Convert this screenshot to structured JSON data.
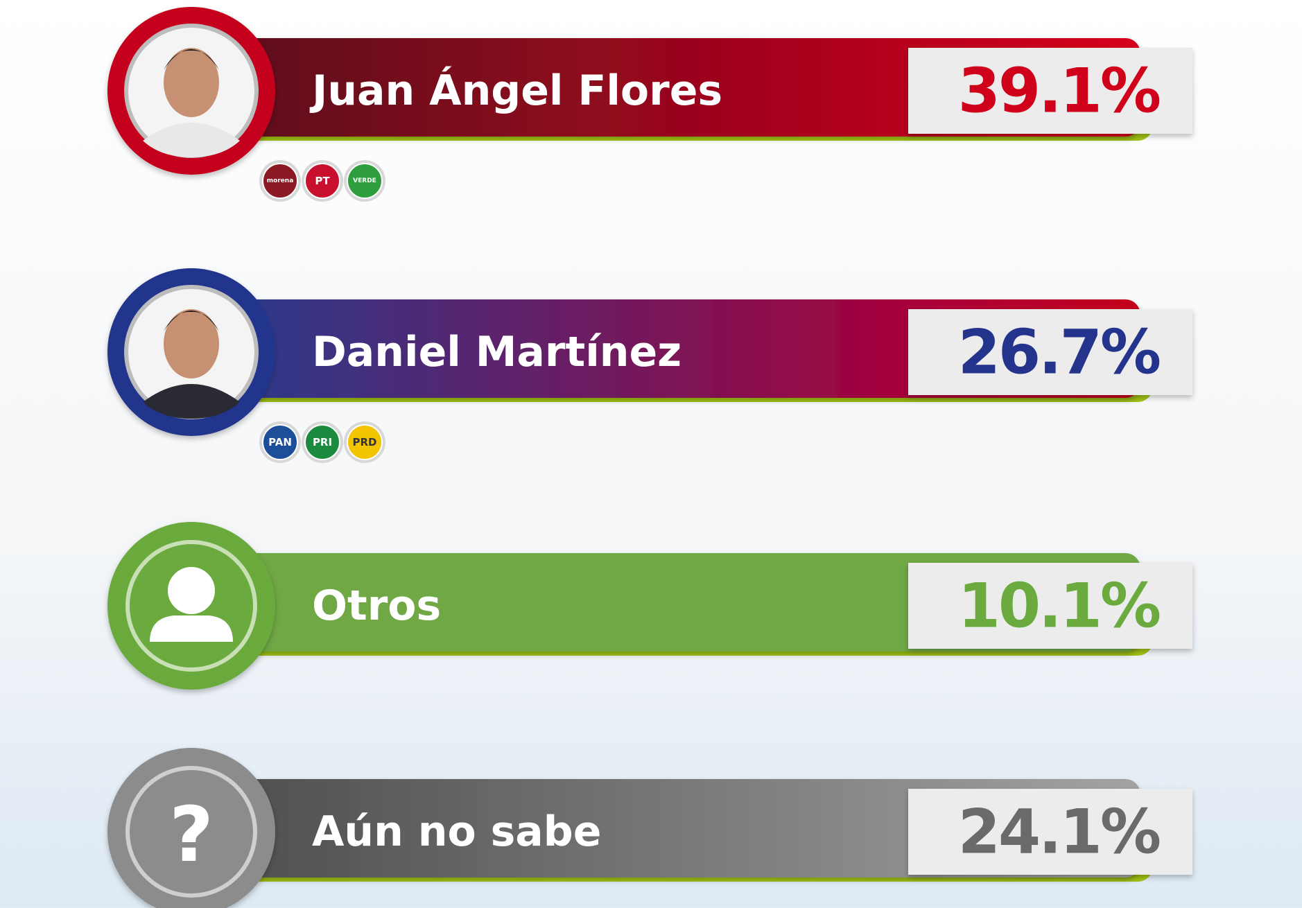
{
  "rows": [
    {
      "name": "Juan Ángel Flores",
      "value": "39.1%",
      "parties": [
        "morena",
        "PT",
        "VERDE"
      ]
    },
    {
      "name": "Daniel Martínez",
      "value": "26.7%",
      "parties": [
        "PAN",
        "PRI",
        "PRD"
      ]
    },
    {
      "name": "Otros",
      "value": "10.1%"
    },
    {
      "name": "Aún no sabe",
      "value": "24.1%",
      "icon": "?"
    }
  ]
}
